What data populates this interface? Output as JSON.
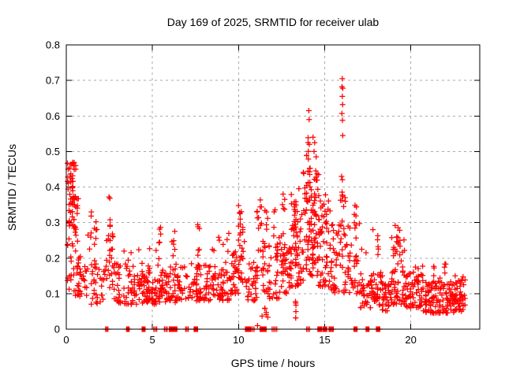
{
  "chart_data": {
    "type": "scatter",
    "title": "Day 169 of 2025, SRMTID for receiver ulab",
    "xlabel": "GPS time / hours",
    "ylabel": "SRMTID / TECUs",
    "xlim": [
      0,
      24
    ],
    "ylim": [
      0,
      0.8
    ],
    "xticks": [
      0,
      5,
      10,
      15,
      20
    ],
    "yticks": [
      0,
      0.1,
      0.2,
      0.3,
      0.4,
      0.5,
      0.6,
      0.7,
      0.8
    ],
    "grid": true,
    "legend": "none",
    "marker": "plus",
    "colors": {
      "points": "#ff0000",
      "grid": "#a8a8a8",
      "axis": "#000000",
      "text": "#000000",
      "background": "#ffffff"
    },
    "seed": 7,
    "cluster_format": [
      "x_start",
      "x_end",
      "count",
      "y_min",
      "y_max",
      "y_skew"
    ],
    "clusters": [
      [
        0.05,
        0.55,
        40,
        0.35,
        0.47,
        1.0
      ],
      [
        0.05,
        0.7,
        30,
        0.24,
        0.37,
        1.0
      ],
      [
        0.05,
        0.9,
        40,
        0.09,
        0.24,
        1.2
      ],
      [
        0.9,
        1.25,
        12,
        0.09,
        0.2,
        1.2
      ],
      [
        1.25,
        1.9,
        18,
        0.15,
        0.33,
        1.1
      ],
      [
        1.45,
        2.3,
        26,
        0.07,
        0.17,
        1.2
      ],
      [
        2.3,
        2.75,
        26,
        0.1,
        0.31,
        1.1
      ],
      [
        2.75,
        3.6,
        40,
        0.07,
        0.22,
        1.5
      ],
      [
        3.6,
        5.6,
        110,
        0.07,
        0.165,
        1.4
      ],
      [
        3.7,
        5.5,
        10,
        0.165,
        0.23,
        1.0
      ],
      [
        5.35,
        5.5,
        5,
        0.22,
        0.33,
        1.0
      ],
      [
        5.6,
        7.0,
        65,
        0.075,
        0.185,
        1.3
      ],
      [
        6.1,
        6.3,
        6,
        0.19,
        0.31,
        1.0
      ],
      [
        7.0,
        8.0,
        50,
        0.08,
        0.185,
        1.3
      ],
      [
        7.6,
        7.75,
        6,
        0.19,
        0.3,
        1.0
      ],
      [
        8.0,
        9.6,
        75,
        0.08,
        0.18,
        1.3
      ],
      [
        8.3,
        9.5,
        9,
        0.18,
        0.27,
        1.0
      ],
      [
        9.6,
        10.0,
        28,
        0.1,
        0.22,
        1.2
      ],
      [
        10.0,
        10.4,
        22,
        0.12,
        0.3,
        1.1
      ],
      [
        10.0,
        10.35,
        8,
        0.28,
        0.36,
        1.0
      ],
      [
        10.45,
        11.05,
        30,
        0.07,
        0.2,
        1.2
      ],
      [
        11.05,
        11.3,
        14,
        0.14,
        0.37,
        1.0
      ],
      [
        11.3,
        11.75,
        26,
        0.1,
        0.35,
        1.2
      ],
      [
        11.35,
        11.75,
        6,
        0.015,
        0.06,
        1.0
      ],
      [
        11.75,
        12.35,
        30,
        0.08,
        0.24,
        1.2
      ],
      [
        12.0,
        12.12,
        4,
        0.26,
        0.34,
        1.0
      ],
      [
        12.35,
        13.05,
        45,
        0.1,
        0.3,
        1.2
      ],
      [
        12.55,
        12.68,
        5,
        0.3,
        0.385,
        1.0
      ],
      [
        13.05,
        13.75,
        70,
        0.12,
        0.4,
        1.3
      ],
      [
        13.2,
        13.35,
        6,
        0.03,
        0.09,
        1.0
      ],
      [
        13.75,
        14.65,
        95,
        0.15,
        0.46,
        1.2
      ],
      [
        13.95,
        14.18,
        12,
        0.38,
        0.565,
        1.0
      ],
      [
        14.65,
        15.35,
        55,
        0.12,
        0.38,
        1.3
      ],
      [
        15.35,
        15.85,
        32,
        0.1,
        0.3,
        1.3
      ],
      [
        15.9,
        16.12,
        16,
        0.15,
        0.43,
        1.0
      ],
      [
        16.12,
        17.05,
        48,
        0.1,
        0.3,
        1.6
      ],
      [
        16.65,
        16.85,
        6,
        0.24,
        0.35,
        1.0
      ],
      [
        17.05,
        18.35,
        70,
        0.06,
        0.16,
        1.3
      ],
      [
        18.05,
        18.25,
        5,
        0.2,
        0.27,
        1.0
      ],
      [
        18.35,
        18.85,
        30,
        0.05,
        0.13,
        1.2
      ],
      [
        18.85,
        19.65,
        55,
        0.07,
        0.26,
        1.4
      ],
      [
        19.05,
        19.35,
        8,
        0.22,
        0.3,
        1.0
      ],
      [
        19.65,
        20.7,
        65,
        0.06,
        0.18,
        1.4
      ],
      [
        20.7,
        22.5,
        115,
        0.045,
        0.135,
        1.3
      ],
      [
        21.0,
        22.3,
        8,
        0.135,
        0.185,
        1.0
      ],
      [
        22.5,
        23.15,
        55,
        0.05,
        0.15,
        1.2
      ]
    ],
    "points": [
      [
        2.48,
        0.372
      ],
      [
        2.53,
        0.368
      ],
      [
        11.1,
        0.01
      ],
      [
        14.08,
        0.615
      ],
      [
        14.1,
        0.59
      ],
      [
        14.32,
        0.54
      ],
      [
        14.42,
        0.525
      ],
      [
        14.38,
        0.5
      ],
      [
        14.5,
        0.485
      ],
      [
        16.02,
        0.705
      ],
      [
        16.0,
        0.682
      ],
      [
        16.05,
        0.678
      ],
      [
        16.02,
        0.655
      ],
      [
        16.04,
        0.632
      ],
      [
        16.0,
        0.607
      ],
      [
        16.03,
        0.588
      ],
      [
        16.05,
        0.545
      ],
      [
        15.98,
        0.43
      ],
      [
        16.18,
        0.37
      ],
      [
        16.2,
        0.36
      ],
      [
        16.1,
        0.345
      ],
      [
        17.15,
        0.225
      ],
      [
        17.4,
        0.215
      ],
      [
        17.8,
        0.28
      ]
    ],
    "zero_marker_runs_format": [
      "x_start",
      "x_end",
      "count"
    ],
    "zero_marker_runs": [
      [
        2.28,
        2.42,
        3
      ],
      [
        3.5,
        3.65,
        5
      ],
      [
        4.4,
        4.57,
        5
      ],
      [
        5.08,
        5.25,
        3
      ],
      [
        5.7,
        5.86,
        3
      ],
      [
        5.98,
        6.42,
        12
      ],
      [
        6.93,
        7.08,
        3
      ],
      [
        7.42,
        7.62,
        5
      ],
      [
        10.4,
        10.68,
        8
      ],
      [
        10.72,
        10.9,
        3
      ],
      [
        11.25,
        11.6,
        10
      ],
      [
        11.95,
        12.22,
        4
      ],
      [
        13.95,
        14.12,
        3
      ],
      [
        14.6,
        14.82,
        5
      ],
      [
        14.9,
        15.12,
        5
      ],
      [
        15.25,
        15.5,
        5
      ],
      [
        16.7,
        16.88,
        4
      ],
      [
        17.4,
        17.57,
        4
      ],
      [
        18.0,
        18.2,
        5
      ]
    ]
  }
}
